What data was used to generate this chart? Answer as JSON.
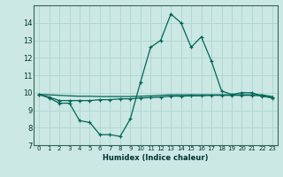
{
  "title": "",
  "xlabel": "Humidex (Indice chaleur)",
  "ylabel": "",
  "bg_color": "#cce8e4",
  "grid_color": "#b0d8d0",
  "line_color": "#006655",
  "x_values": [
    0,
    1,
    2,
    3,
    4,
    5,
    6,
    7,
    8,
    9,
    10,
    11,
    12,
    13,
    14,
    15,
    16,
    17,
    18,
    19,
    20,
    21,
    22,
    23
  ],
  "line1_y": [
    9.9,
    9.7,
    9.4,
    9.4,
    8.4,
    8.3,
    7.6,
    7.6,
    7.5,
    8.5,
    10.6,
    12.6,
    13.0,
    14.5,
    14.0,
    12.6,
    13.2,
    11.8,
    10.1,
    9.9,
    10.0,
    10.0,
    9.8,
    9.7
  ],
  "line2_y": [
    9.9,
    9.75,
    9.55,
    9.55,
    9.55,
    9.55,
    9.6,
    9.6,
    9.65,
    9.65,
    9.7,
    9.72,
    9.75,
    9.8,
    9.8,
    9.82,
    9.82,
    9.85,
    9.85,
    9.85,
    9.85,
    9.85,
    9.82,
    9.72
  ],
  "line3_y": [
    9.9,
    9.88,
    9.85,
    9.82,
    9.8,
    9.8,
    9.78,
    9.78,
    9.78,
    9.78,
    9.8,
    9.82,
    9.85,
    9.88,
    9.88,
    9.88,
    9.88,
    9.88,
    9.88,
    9.88,
    9.88,
    9.88,
    9.88,
    9.78
  ],
  "xlim": [
    -0.5,
    23.5
  ],
  "ylim": [
    7,
    15
  ],
  "yticks": [
    7,
    8,
    9,
    10,
    11,
    12,
    13,
    14
  ],
  "xtick_labels": [
    "0",
    "1",
    "2",
    "3",
    "4",
    "5",
    "6",
    "7",
    "8",
    "9",
    "10",
    "11",
    "12",
    "13",
    "14",
    "15",
    "16",
    "17",
    "18",
    "19",
    "20",
    "21",
    "22",
    "23"
  ]
}
